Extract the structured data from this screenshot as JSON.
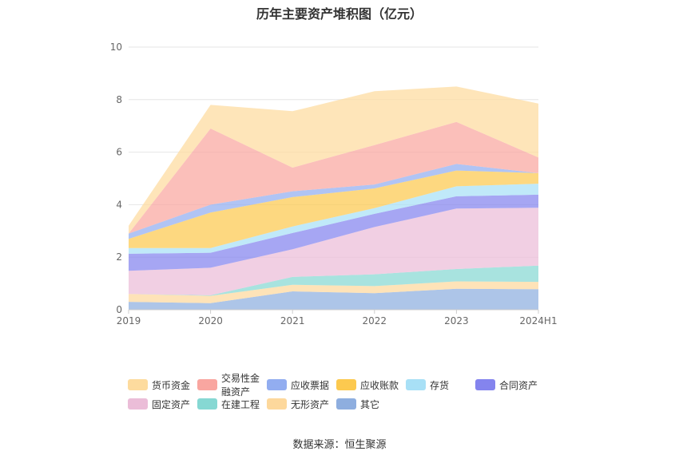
{
  "chart_data": {
    "type": "area",
    "stacked": true,
    "title": "历年主要资产堆积图（亿元）",
    "categories": [
      "2019",
      "2020",
      "2021",
      "2022",
      "2023",
      "2024H1"
    ],
    "ylim": [
      0,
      10
    ],
    "yticks": [
      "0",
      "2",
      "4",
      "6",
      "8",
      "10"
    ],
    "grid": true,
    "legend_position": "bottom",
    "series": [
      {
        "name": "其它",
        "color": "#8eaedf",
        "values": [
          0.3,
          0.25,
          0.7,
          0.63,
          0.8,
          0.78
        ]
      },
      {
        "name": "无形资产",
        "color": "#fdd89c",
        "values": [
          0.3,
          0.28,
          0.25,
          0.27,
          0.28,
          0.28
        ]
      },
      {
        "name": "在建工程",
        "color": "#86d8d3",
        "values": [
          0.0,
          0.02,
          0.3,
          0.45,
          0.47,
          0.62
        ]
      },
      {
        "name": "固定资产",
        "color": "#ebbdd8",
        "values": [
          0.88,
          1.05,
          1.05,
          1.8,
          2.3,
          2.2
        ]
      },
      {
        "name": "合同资产",
        "color": "#8484ee",
        "values": [
          0.65,
          0.57,
          0.62,
          0.5,
          0.47,
          0.5
        ]
      },
      {
        "name": "存货",
        "color": "#a8e0f6",
        "values": [
          0.22,
          0.18,
          0.25,
          0.22,
          0.38,
          0.42
        ]
      },
      {
        "name": "应收账款",
        "color": "#fcc94f",
        "values": [
          0.35,
          1.35,
          1.12,
          0.75,
          0.6,
          0.4
        ]
      },
      {
        "name": "应收票据",
        "color": "#92adf0",
        "values": [
          0.2,
          0.3,
          0.22,
          0.15,
          0.25,
          0.0
        ]
      },
      {
        "name": "交易性金融资产",
        "color": "#f9a6a0",
        "values": [
          0.0,
          2.9,
          0.9,
          1.5,
          1.6,
          0.6
        ]
      },
      {
        "name": "货币资金",
        "color": "#fddb9e",
        "values": [
          0.3,
          0.9,
          2.15,
          2.05,
          1.35,
          2.05
        ]
      }
    ],
    "legend_order": [
      "货币资金",
      "交易性金融资产",
      "应收票据",
      "应收账款",
      "存货",
      "合同资产",
      "固定资产",
      "在建工程",
      "无形资产",
      "其它"
    ]
  },
  "source_text": "数据来源：恒生聚源"
}
